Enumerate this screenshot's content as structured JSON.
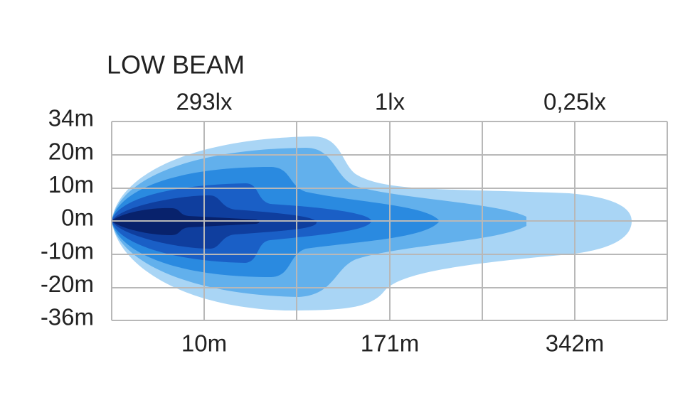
{
  "title": "LOW BEAM",
  "top_labels": [
    "293lx",
    "1lx",
    "0,25lx"
  ],
  "bottom_labels": [
    "10m",
    "171m",
    "342m"
  ],
  "y_labels": [
    "34m",
    "20m",
    "10m",
    "0m",
    "-10m",
    "-20m",
    "-36m"
  ]
}
